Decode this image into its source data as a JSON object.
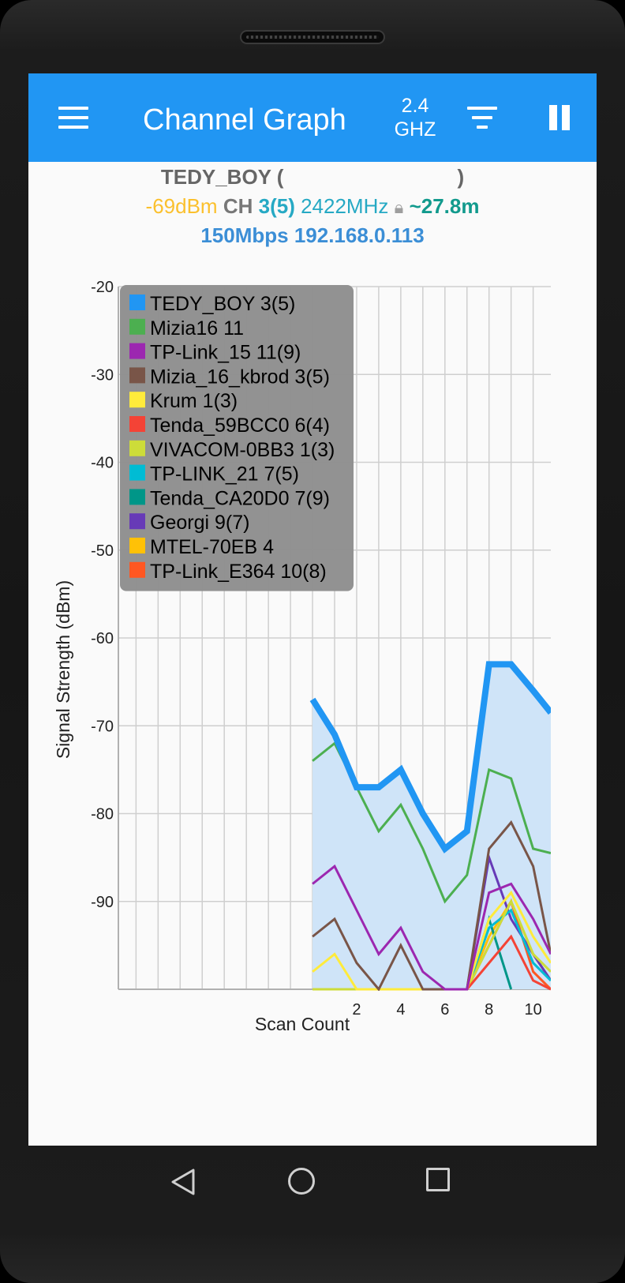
{
  "appbar": {
    "title": "Channel Graph",
    "band_value": "2.4",
    "band_unit": "GHZ",
    "icons": [
      "menu-icon",
      "filter-icon",
      "pause-icon"
    ]
  },
  "connection": {
    "ssid": "TEDY_BOY",
    "open_paren": "(",
    "close_paren": ")",
    "signal": "-69dBm",
    "ch_label": "CH",
    "channel": "3(5)",
    "frequency": "2422MHz",
    "distance": "~27.8m",
    "speed_ip": "150Mbps 192.168.0.113"
  },
  "chart_data": {
    "type": "line",
    "ylabel": "Signal Strength (dBm)",
    "xlabel": "Scan Count",
    "ylim": [
      -100,
      -20
    ],
    "yticks": [
      "-20",
      "-30",
      "-40",
      "-50",
      "-60",
      "-70",
      "-80",
      "-90"
    ],
    "xlim": [
      -8.8,
      10.8
    ],
    "xticks": [
      "2",
      "4",
      "6",
      "8",
      "10"
    ],
    "xtick_values": [
      2,
      4,
      6,
      8,
      10
    ],
    "grid": true,
    "legend": "top-left",
    "series": [
      {
        "name": "TEDY_BOY 3(5)",
        "color": "#2196f3",
        "highlight": true,
        "x": [
          0,
          1,
          2,
          3,
          4,
          5,
          6,
          7,
          8,
          9,
          10,
          10.8
        ],
        "values": [
          -67,
          -71,
          -77,
          -77,
          -75,
          -80,
          -84,
          -82,
          -63,
          -63,
          -66,
          -68.5
        ]
      },
      {
        "name": "Mizia16 11",
        "color": "#4caf50",
        "x": [
          0,
          1,
          2,
          3,
          4,
          5,
          6,
          7,
          8,
          9,
          10,
          10.8
        ],
        "values": [
          -74,
          -72,
          -77,
          -82,
          -79,
          -84,
          -90,
          -87,
          -75,
          -76,
          -84,
          -84.5
        ]
      },
      {
        "name": "TP-Link_15 11(9)",
        "color": "#9c27b0",
        "x": [
          0,
          1,
          2,
          3,
          4,
          5,
          6,
          7,
          8,
          9,
          10,
          10.8
        ],
        "values": [
          -88,
          -86,
          -91,
          -96,
          -93,
          -98,
          -100,
          -100,
          -89,
          -88,
          -92,
          -96
        ]
      },
      {
        "name": "Mizia_16_kbrod 3(5)",
        "color": "#795548",
        "x": [
          0,
          1,
          2,
          3,
          4,
          5,
          6,
          7,
          8,
          9,
          10,
          10.8
        ],
        "values": [
          -94,
          -92,
          -97,
          -100,
          -95,
          -100,
          -100,
          -100,
          -84,
          -81,
          -86,
          -96
        ]
      },
      {
        "name": "Krum 1(3)",
        "color": "#ffeb3b",
        "x": [
          0,
          1,
          2,
          3,
          4,
          5,
          6,
          7,
          8,
          9,
          10,
          10.8
        ],
        "values": [
          -98,
          -96,
          -100,
          -100,
          -100,
          -100,
          -100,
          -100,
          -92,
          -89,
          -94,
          -97
        ]
      },
      {
        "name": "Tenda_59BCC0 6(4)",
        "color": "#f44336",
        "x": [
          7,
          8,
          9,
          10,
          10.8
        ],
        "values": [
          -100,
          -97,
          -94,
          -99,
          -100
        ]
      },
      {
        "name": "VIVACOM-0BB3 1(3)",
        "color": "#cddc39",
        "x": [
          0,
          1,
          2,
          3,
          4,
          5,
          6,
          7,
          8,
          9,
          10,
          10.8
        ],
        "values": [
          -100,
          -100,
          -100,
          -100,
          -100,
          -100,
          -100,
          -100,
          -95,
          -90,
          -96,
          -98
        ]
      },
      {
        "name": "TP-LINK_21 7(5)",
        "color": "#00bcd4",
        "x": [
          7,
          8,
          9,
          10,
          10.8
        ],
        "values": [
          -100,
          -93,
          -91,
          -97,
          -99
        ]
      },
      {
        "name": "Tenda_CA20D0 7(9)",
        "color": "#009688",
        "x": [
          5,
          6,
          7,
          8,
          9
        ],
        "values": [
          -100,
          -100,
          -100,
          -92,
          -100
        ]
      },
      {
        "name": "Georgi 9(7)",
        "color": "#673ab7",
        "x": [
          7,
          8,
          9,
          10,
          10.8
        ],
        "values": [
          -100,
          -85,
          -92,
          -96,
          -99
        ]
      },
      {
        "name": "MTEL-70EB 4",
        "color": "#ffc107",
        "x": [
          7,
          8,
          9,
          10,
          10.8
        ],
        "values": [
          -100,
          -94,
          -90,
          -96,
          -99
        ]
      },
      {
        "name": "TP-Link_E364 10(8)",
        "color": "#ff5722",
        "x": [
          7,
          8,
          9,
          10,
          10.8
        ],
        "values": [
          -100,
          -95,
          -90,
          -98,
          -100
        ]
      }
    ]
  },
  "navbar": {
    "icons": [
      "back-icon",
      "home-icon",
      "recent-apps-icon"
    ]
  }
}
